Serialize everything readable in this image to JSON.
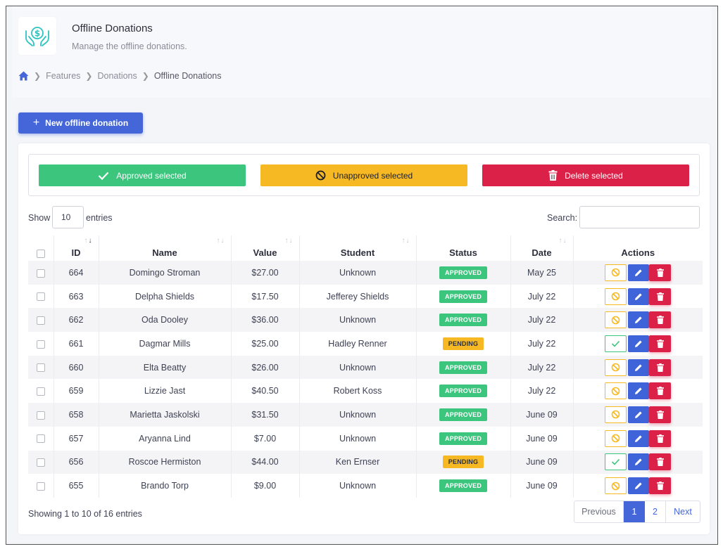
{
  "header": {
    "title": "Offline Donations",
    "subtitle": "Manage the offline donations.",
    "logo_icon": "donation-hands-icon"
  },
  "breadcrumb": {
    "home_icon": "home-icon",
    "items": [
      "Features",
      "Donations",
      "Offline Donations"
    ]
  },
  "toolbar": {
    "new_label": "New offline donation"
  },
  "bulk": {
    "approve_label": "Approved selected",
    "unapprove_label": "Unapproved selected",
    "delete_label": "Delete selected"
  },
  "table_controls": {
    "show_label": "Show",
    "entries_value": "10",
    "entries_label": "entries",
    "search_label": "Search:",
    "search_value": ""
  },
  "columns": [
    "ID",
    "Name",
    "Value",
    "Student",
    "Status",
    "Date",
    "Actions"
  ],
  "rows": [
    {
      "id": "664",
      "name": "Domingo Stroman",
      "value": "$27.00",
      "student": "Unknown",
      "status": "APPROVED",
      "date": "May 25"
    },
    {
      "id": "663",
      "name": "Delpha Shields",
      "value": "$17.50",
      "student": "Jefferey Shields",
      "status": "APPROVED",
      "date": "July 22"
    },
    {
      "id": "662",
      "name": "Oda Dooley",
      "value": "$36.00",
      "student": "Unknown",
      "status": "APPROVED",
      "date": "July 22"
    },
    {
      "id": "661",
      "name": "Dagmar Mills",
      "value": "$25.00",
      "student": "Hadley Renner",
      "status": "PENDING",
      "date": "July 22"
    },
    {
      "id": "660",
      "name": "Elta Beatty",
      "value": "$26.00",
      "student": "Unknown",
      "status": "APPROVED",
      "date": "July 22"
    },
    {
      "id": "659",
      "name": "Lizzie Jast",
      "value": "$40.50",
      "student": "Robert Koss",
      "status": "APPROVED",
      "date": "July 22"
    },
    {
      "id": "658",
      "name": "Marietta Jaskolski",
      "value": "$31.50",
      "student": "Unknown",
      "status": "APPROVED",
      "date": "June 09"
    },
    {
      "id": "657",
      "name": "Aryanna Lind",
      "value": "$7.00",
      "student": "Unknown",
      "status": "APPROVED",
      "date": "June 09"
    },
    {
      "id": "656",
      "name": "Roscoe Hermiston",
      "value": "$44.00",
      "student": "Ken Ernser",
      "status": "PENDING",
      "date": "June 09"
    },
    {
      "id": "655",
      "name": "Brando Torp",
      "value": "$9.00",
      "student": "Unknown",
      "status": "APPROVED",
      "date": "June 09"
    }
  ],
  "footer": {
    "info": "Showing 1 to 10 of 16 entries",
    "prev_label": "Previous",
    "pages": [
      "1",
      "2"
    ],
    "current_page": "1",
    "next_label": "Next"
  },
  "colors": {
    "primary": "#4466d9",
    "success": "#3cc57d",
    "warning": "#f6b924",
    "danger": "#dc2148"
  }
}
